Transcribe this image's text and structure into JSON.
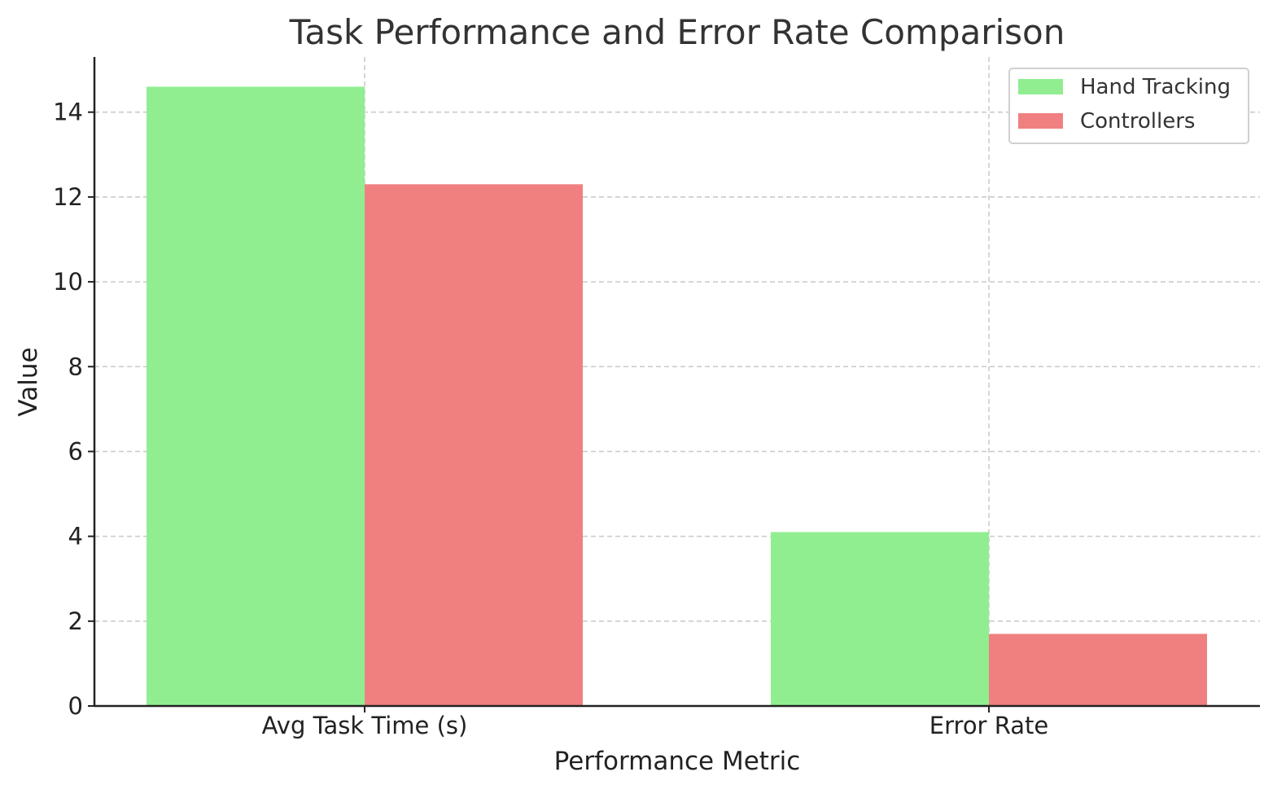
{
  "chart_data": {
    "type": "bar",
    "title": "Task Performance and Error Rate Comparison",
    "xlabel": "Performance Metric",
    "ylabel": "Value",
    "categories": [
      "Avg Task Time (s)",
      "Error Rate"
    ],
    "series": [
      {
        "name": "Hand Tracking",
        "values": [
          14.6,
          4.1
        ],
        "color": "#90ee90"
      },
      {
        "name": "Controllers",
        "values": [
          12.3,
          1.7
        ],
        "color": "#f08080"
      }
    ],
    "ylim": [
      0,
      15.3
    ],
    "yticks": [
      0,
      2,
      4,
      6,
      8,
      10,
      12,
      14
    ],
    "grid": true,
    "legend_position": "top-right"
  }
}
